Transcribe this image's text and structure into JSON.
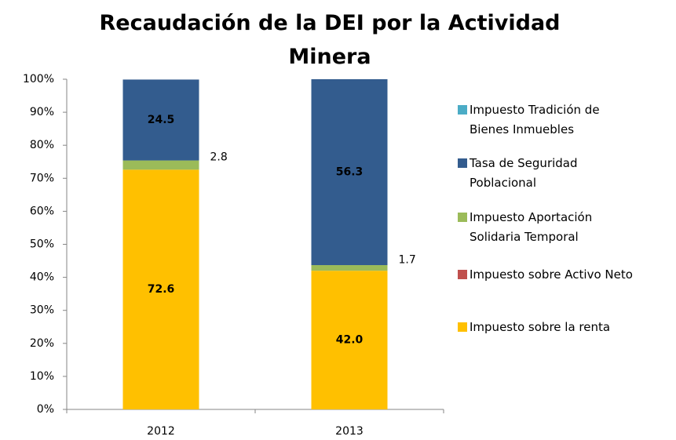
{
  "chart_data": {
    "type": "stacked_bar",
    "title": "Recaudación de la DEI por la Actividad Minera",
    "categories": [
      "2012",
      "2013"
    ],
    "series": [
      {
        "name": "Impuesto sobre la renta",
        "color": "#FFC000",
        "values": [
          72.6,
          42.0
        ],
        "value_labels": [
          "72.6",
          "42.0"
        ],
        "label_color": "#000000",
        "label_pos": "inside"
      },
      {
        "name": "Impuesto sobre Activo Neto",
        "color": "#C0504D",
        "values": [
          0,
          0
        ]
      },
      {
        "name": "Impuesto Aportación Solidaria Temporal",
        "color": "#9BBB59",
        "values": [
          2.8,
          1.7
        ],
        "value_labels": [
          "2.8",
          "1.7"
        ],
        "label_color": "#000000",
        "label_pos": "outside"
      },
      {
        "name": "Tasa de Seguridad Poblacional",
        "color": "#335C8E",
        "values": [
          24.5,
          56.3
        ],
        "value_labels": [
          "24.5",
          "56.3"
        ],
        "label_color": "#ffffff",
        "label_pos": "inside"
      },
      {
        "name": "Impuesto Tradición de Bienes Inmuebles",
        "color": "#4BACC6",
        "values": [
          0,
          0
        ]
      }
    ],
    "ylim": [
      0,
      100
    ],
    "yticks": [
      {
        "value": 0,
        "label": "0%"
      },
      {
        "value": 10,
        "label": "10%"
      },
      {
        "value": 20,
        "label": "20%"
      },
      {
        "value": 30,
        "label": "30%"
      },
      {
        "value": 40,
        "label": "40%"
      },
      {
        "value": 50,
        "label": "50%"
      },
      {
        "value": 60,
        "label": "60%"
      },
      {
        "value": 70,
        "label": "70%"
      },
      {
        "value": 80,
        "label": "80%"
      },
      {
        "value": 90,
        "label": "90%"
      },
      {
        "value": 100,
        "label": "100%"
      }
    ],
    "legend": "right"
  }
}
